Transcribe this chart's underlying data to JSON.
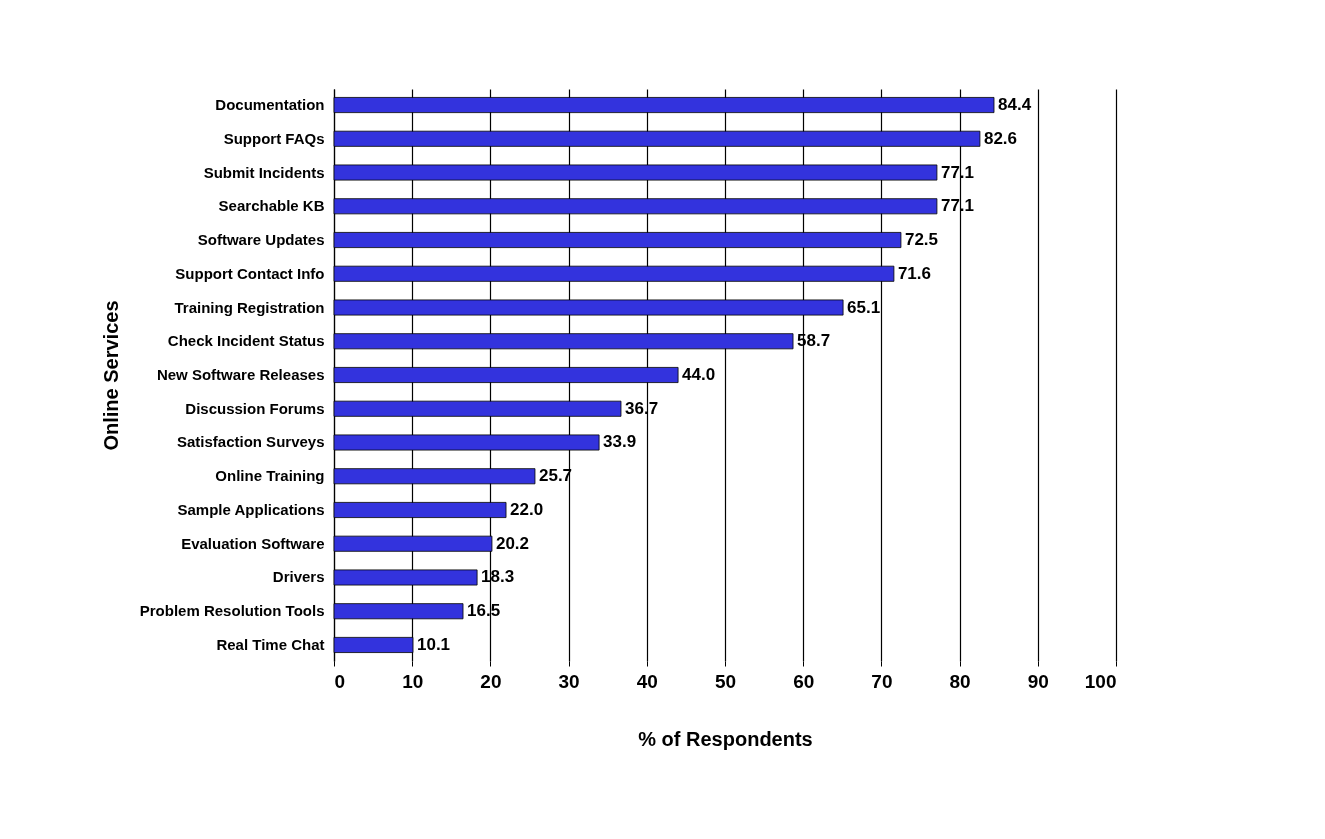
{
  "chart_data": {
    "type": "bar",
    "orientation": "horizontal",
    "xlabel": "% of Respondents",
    "ylabel": "Online Services",
    "categories": [
      "Documentation",
      "Support FAQs",
      "Submit Incidents",
      "Searchable KB",
      "Software Updates",
      "Support Contact Info",
      "Training Registration",
      "Check Incident Status",
      "New Software Releases",
      "Discussion Forums",
      "Satisfaction Surveys",
      "Online Training",
      "Sample Applications",
      "Evaluation Software",
      "Drivers",
      "Problem Resolution Tools",
      "Real Time Chat"
    ],
    "values": [
      84.4,
      82.6,
      77.1,
      77.1,
      72.5,
      71.6,
      65.1,
      58.7,
      44.0,
      36.7,
      33.9,
      25.7,
      22.0,
      20.2,
      18.3,
      16.5,
      10.1
    ],
    "value_labels": [
      "84.4",
      "82.6",
      "77.1",
      "77.1",
      "72.5",
      "71.6",
      "65.1",
      "58.7",
      "44.0",
      "36.7",
      "33.9",
      "25.7",
      "22.0",
      "20.2",
      "18.3",
      "16.5",
      "10.1"
    ],
    "color": "#3333dd",
    "xlim": [
      0,
      100
    ],
    "xticks": [
      0,
      10,
      20,
      30,
      40,
      50,
      60,
      70,
      80,
      90,
      100
    ],
    "grid": "x"
  }
}
